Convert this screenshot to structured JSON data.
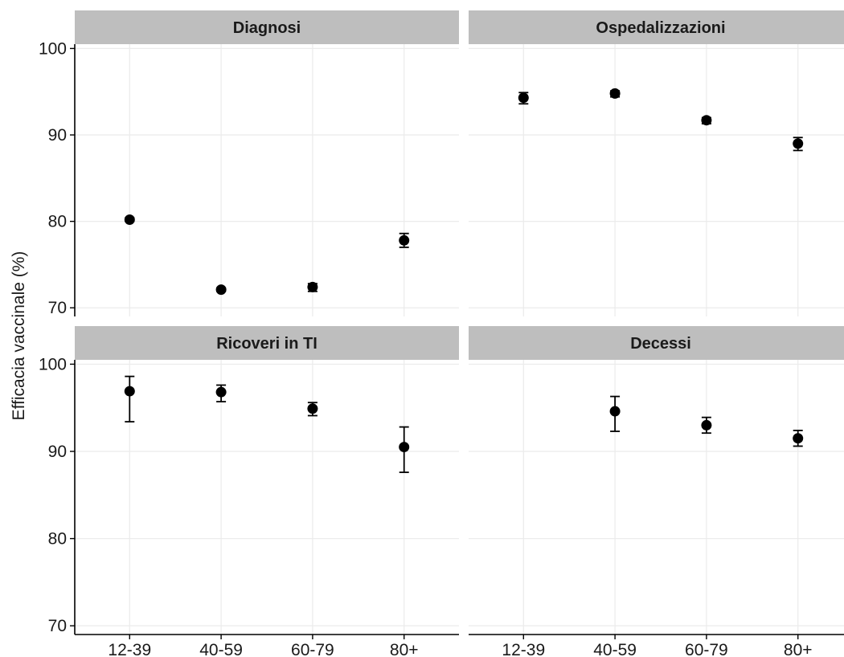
{
  "chart_data": {
    "type": "scatter",
    "ylabel": "Efficacia vaccinale (%)",
    "xlabel": "",
    "categories": [
      "12-39",
      "40-59",
      "60-79",
      "80+"
    ],
    "yticks": [
      70,
      80,
      90,
      100
    ],
    "ylim": [
      69,
      100.5
    ],
    "grid": true,
    "colors": {
      "point": "#000000",
      "strip": "#bebebe",
      "grid": "#ebebeb",
      "axis": "#000000"
    },
    "panels": [
      {
        "title": "Diagnosi",
        "points": [
          {
            "x": "12-39",
            "y": 80.2,
            "lower": 80.0,
            "upper": 80.4
          },
          {
            "x": "40-59",
            "y": 72.1,
            "lower": 71.9,
            "upper": 72.3
          },
          {
            "x": "60-79",
            "y": 72.4,
            "lower": 71.9,
            "upper": 72.8
          },
          {
            "x": "80+",
            "y": 77.8,
            "lower": 77.0,
            "upper": 78.6
          }
        ]
      },
      {
        "title": "Ospedalizzazioni",
        "points": [
          {
            "x": "12-39",
            "y": 94.3,
            "lower": 93.6,
            "upper": 94.9
          },
          {
            "x": "40-59",
            "y": 94.8,
            "lower": 94.4,
            "upper": 95.1
          },
          {
            "x": "60-79",
            "y": 91.7,
            "lower": 91.3,
            "upper": 92.0
          },
          {
            "x": "80+",
            "y": 89.0,
            "lower": 88.2,
            "upper": 89.7
          }
        ]
      },
      {
        "title": "Ricoveri in TI",
        "points": [
          {
            "x": "12-39",
            "y": 96.9,
            "lower": 93.4,
            "upper": 98.6
          },
          {
            "x": "40-59",
            "y": 96.8,
            "lower": 95.7,
            "upper": 97.6
          },
          {
            "x": "60-79",
            "y": 94.9,
            "lower": 94.1,
            "upper": 95.6
          },
          {
            "x": "80+",
            "y": 90.5,
            "lower": 87.6,
            "upper": 92.8
          }
        ]
      },
      {
        "title": "Decessi",
        "points": [
          {
            "x": "40-59",
            "y": 94.6,
            "lower": 92.3,
            "upper": 96.3
          },
          {
            "x": "60-79",
            "y": 93.0,
            "lower": 92.1,
            "upper": 93.9
          },
          {
            "x": "80+",
            "y": 91.5,
            "lower": 90.6,
            "upper": 92.4
          }
        ]
      }
    ]
  }
}
